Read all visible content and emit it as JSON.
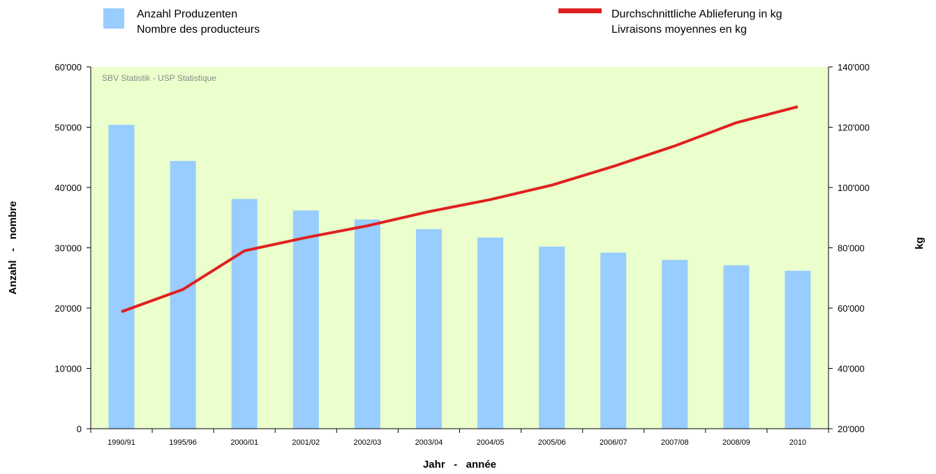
{
  "chart_data": {
    "type": "bar+line",
    "categories": [
      "1990/91",
      "1995/96",
      "2000/01",
      "2001/02",
      "2002/03",
      "2003/04",
      "2004/05",
      "2005/06",
      "2006/07",
      "2007/08",
      "2008/09",
      "2010"
    ],
    "series": [
      {
        "name_lines": [
          "Anzahl Produzenten",
          "Nombre des producteurs"
        ],
        "type": "bar",
        "axis": "left",
        "color": "#99ccff",
        "values": [
          50400,
          44400,
          38100,
          36200,
          34700,
          33100,
          31700,
          30200,
          29200,
          28000,
          27100,
          26200
        ]
      },
      {
        "name_lines": [
          "Durchschnittliche Ablieferung in kg",
          "Livraisons moyennes en kg"
        ],
        "type": "line",
        "axis": "right",
        "color": "#e02020",
        "values": [
          58800,
          66200,
          79000,
          83400,
          87300,
          92000,
          96000,
          100800,
          107000,
          113800,
          121500,
          126800
        ]
      }
    ],
    "y_left": {
      "label": "Anzahl   -   nombre",
      "ylim": [
        0,
        60000
      ],
      "ticks": [
        0,
        10000,
        20000,
        30000,
        40000,
        50000,
        60000
      ],
      "tick_labels": [
        "0",
        "10'000",
        "20'000",
        "30'000",
        "40'000",
        "50'000",
        "60'000"
      ]
    },
    "y_right": {
      "label": "kg",
      "ylim": [
        20000,
        140000
      ],
      "ticks": [
        20000,
        40000,
        60000,
        80000,
        100000,
        120000,
        140000
      ],
      "tick_labels": [
        "20'000",
        "40'000",
        "60'000",
        "80'000",
        "100'000",
        "120'000",
        "140'000"
      ]
    },
    "xlabel": "Jahr   -   année",
    "annotation": "SBV Statistik - USP Statistique",
    "plot_background": "#eaffcc",
    "grid": false,
    "legend_placement": "top"
  }
}
